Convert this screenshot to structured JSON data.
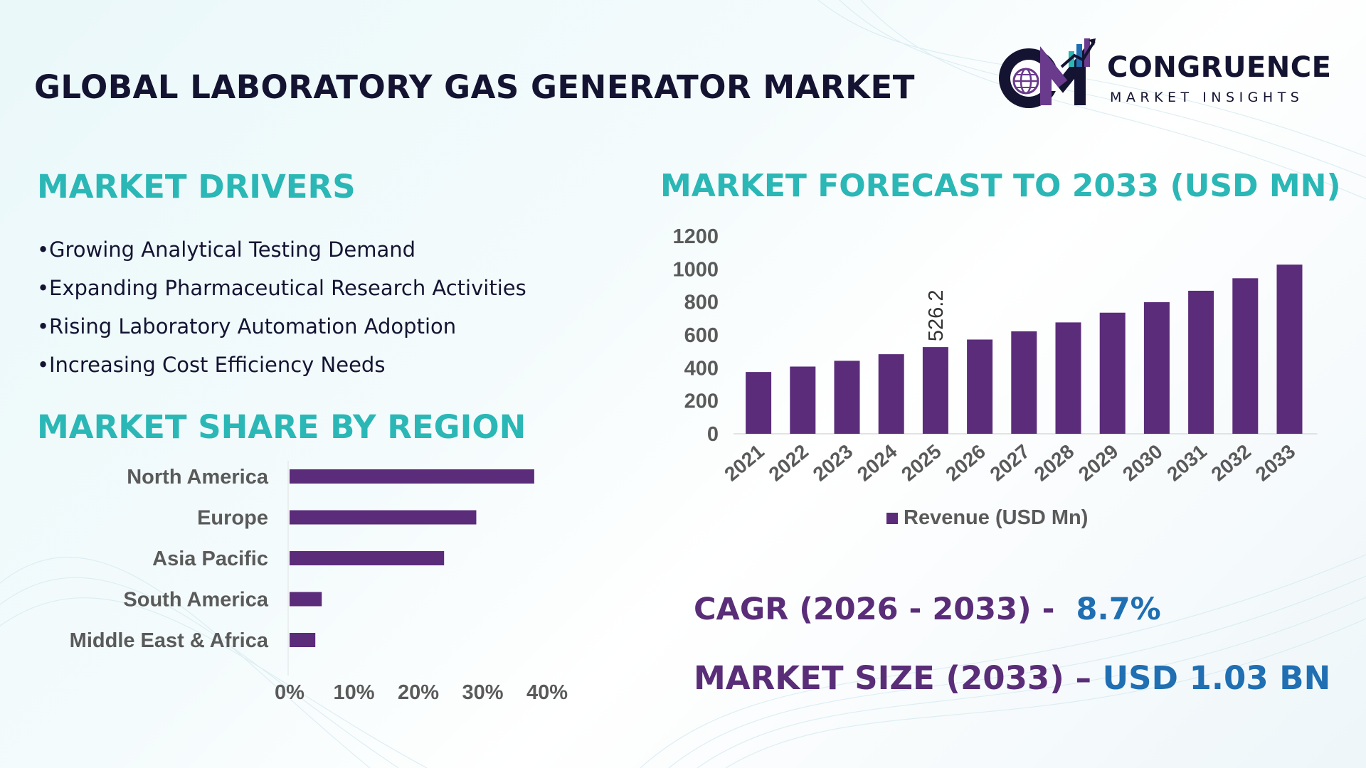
{
  "header": {
    "title": "GLOBAL LABORATORY GAS GENERATOR MARKET"
  },
  "logo": {
    "name": "CONGRUENCE",
    "tagline": "MARKET INSIGHTS",
    "icon": "cm-globe-chart-logo"
  },
  "drivers": {
    "heading": "MARKET DRIVERS",
    "bullet": "•",
    "items": [
      "Growing Analytical Testing Demand",
      "Expanding Pharmaceutical Research Activities",
      "Rising Laboratory Automation Adoption",
      "Increasing Cost Efficiency Needs"
    ]
  },
  "region_section": {
    "heading": "MARKET SHARE BY REGION"
  },
  "forecast_section": {
    "heading": "MARKET FORECAST TO 2033 (USD MN)"
  },
  "summary": {
    "cagr_label": "CAGR (2026 - 2033) -",
    "cagr_value": "8.7%",
    "size_label": "MARKET SIZE (2033) –",
    "size_value": "USD 1.03 BN"
  },
  "colors": {
    "bar": "#5b2c7a",
    "heading_teal": "#2ab7b5",
    "label_purple": "#5a2d78",
    "value_blue": "#1f6fb2"
  },
  "chart_data": [
    {
      "type": "bar",
      "orientation": "horizontal",
      "categories": [
        "North America",
        "Europe",
        "Asia Pacific",
        "South America",
        "Middle East & Africa"
      ],
      "values": [
        38,
        29,
        24,
        5,
        4
      ],
      "unit": "%",
      "xlim": [
        0,
        40
      ],
      "xticks": [
        "0%",
        "10%",
        "20%",
        "30%",
        "40%"
      ],
      "grid": false,
      "legend": "none"
    },
    {
      "type": "bar",
      "orientation": "vertical",
      "categories": [
        "2021",
        "2022",
        "2023",
        "2024",
        "2025",
        "2026",
        "2027",
        "2028",
        "2029",
        "2030",
        "2031",
        "2032",
        "2033"
      ],
      "series": [
        {
          "name": "Revenue (USD Mn)",
          "values": [
            375,
            408,
            443,
            483,
            526.2,
            572,
            622,
            676,
            735,
            799,
            868,
            944,
            1027
          ]
        }
      ],
      "data_labels": [
        {
          "category": "2025",
          "text": "526.2"
        }
      ],
      "ylim": [
        0,
        1200
      ],
      "yticks": [
        "0",
        "200",
        "400",
        "600",
        "800",
        "1000",
        "1200"
      ],
      "grid": false,
      "legend": "bottom"
    }
  ]
}
